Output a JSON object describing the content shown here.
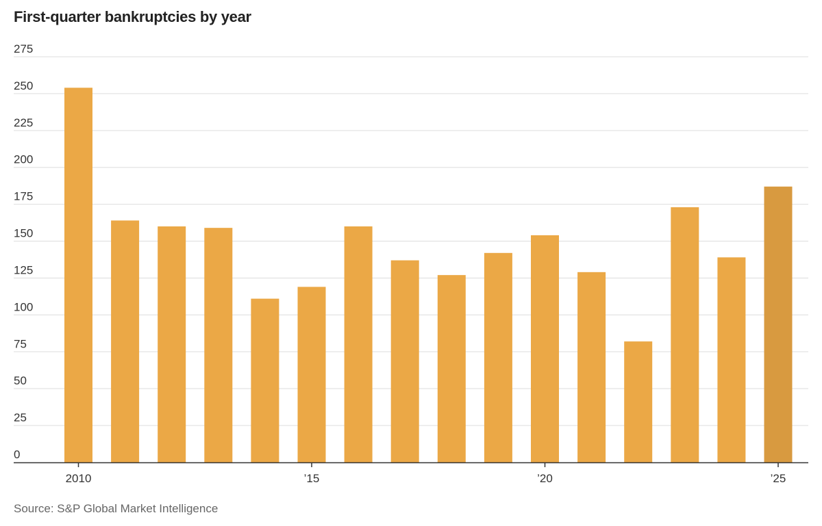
{
  "chart_data": {
    "type": "bar",
    "title": "First-quarter bankruptcies by year",
    "xlabel": "",
    "ylabel": "",
    "ylim": [
      0,
      275
    ],
    "yticks": [
      0,
      25,
      50,
      75,
      100,
      125,
      150,
      175,
      200,
      225,
      250,
      275
    ],
    "categories": [
      "2010",
      "2011",
      "2012",
      "2013",
      "2014",
      "2015",
      "2016",
      "2017",
      "2018",
      "2019",
      "2020",
      "2021",
      "2022",
      "2023",
      "2024",
      "2025"
    ],
    "values": [
      254,
      164,
      160,
      159,
      111,
      119,
      160,
      137,
      127,
      142,
      154,
      129,
      82,
      173,
      139,
      187
    ],
    "xticks": [
      {
        "category": "2010",
        "label": "2010"
      },
      {
        "category": "2015",
        "label": "’15"
      },
      {
        "category": "2020",
        "label": "’20"
      },
      {
        "category": "2025",
        "label": "’25"
      }
    ],
    "grid": true,
    "colors": {
      "bar": "#EBA846",
      "highlight_bar": "#D89A40",
      "grid": "#DDDDDD",
      "axis": "#333333"
    },
    "highlight_category": "2025"
  },
  "source": "Source: S&P Global Market Intelligence"
}
